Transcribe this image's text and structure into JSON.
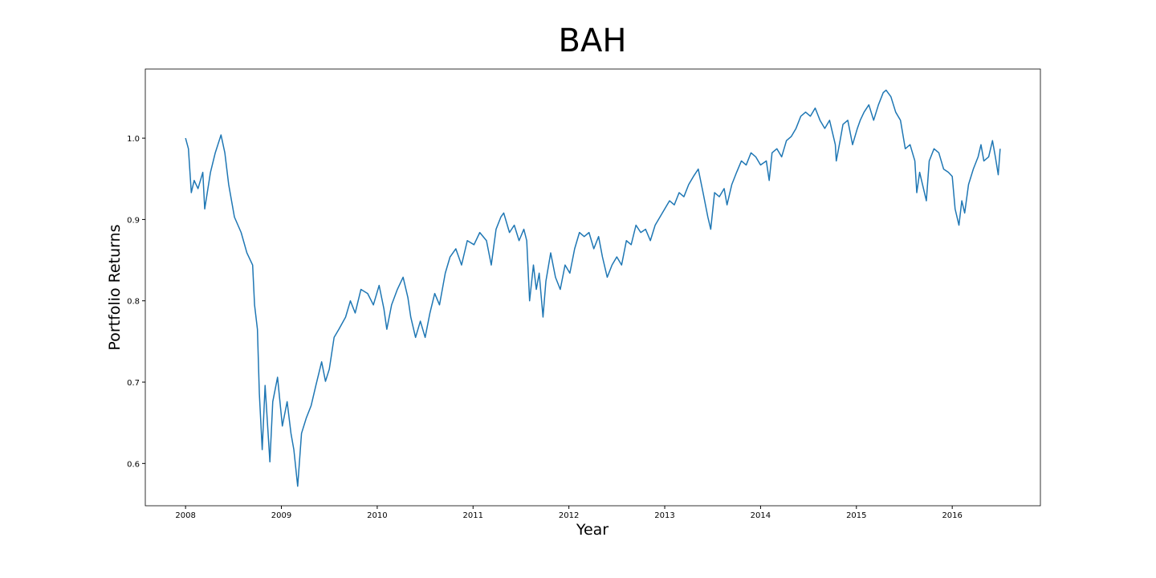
{
  "chart_data": {
    "type": "line",
    "title": "BAH",
    "x_label": "Year",
    "y_label": "Portfolio Returns",
    "color": "#1f77b4",
    "grid": false,
    "xlim": [
      2007.58,
      2016.92
    ],
    "ylim": [
      0.548,
      1.085
    ],
    "xticks": [
      2008,
      2009,
      2010,
      2011,
      2012,
      2013,
      2014,
      2015,
      2016
    ],
    "yticks": [
      0.6,
      0.7,
      0.8,
      0.9,
      {
        "value": 1,
        "label": "1.0"
      }
    ],
    "x": [
      2008.0,
      2008.03,
      2008.06,
      2008.09,
      2008.13,
      2008.18,
      2008.2,
      2008.26,
      2008.31,
      2008.37,
      2008.41,
      2008.45,
      2008.51,
      2008.58,
      2008.64,
      2008.7,
      2008.72,
      2008.75,
      2008.77,
      2008.8,
      2008.83,
      2008.88,
      2008.91,
      2008.96,
      2009.01,
      2009.06,
      2009.1,
      2009.13,
      2009.17,
      2009.21,
      2009.26,
      2009.31,
      2009.36,
      2009.42,
      2009.46,
      2009.5,
      2009.55,
      2009.6,
      2009.67,
      2009.72,
      2009.77,
      2009.83,
      2009.9,
      2009.96,
      2010.02,
      2010.07,
      2010.1,
      2010.15,
      2010.21,
      2010.27,
      2010.32,
      2010.35,
      2010.4,
      2010.45,
      2010.5,
      2010.55,
      2010.6,
      2010.65,
      2010.71,
      2010.76,
      2010.82,
      2010.88,
      2010.94,
      2011.01,
      2011.07,
      2011.14,
      2011.19,
      2011.24,
      2011.29,
      2011.32,
      2011.38,
      2011.43,
      2011.48,
      2011.53,
      2011.56,
      2011.59,
      2011.63,
      2011.66,
      2011.69,
      2011.73,
      2011.76,
      2011.81,
      2011.86,
      2011.91,
      2011.96,
      2012.01,
      2012.06,
      2012.11,
      2012.16,
      2012.21,
      2012.26,
      2012.31,
      2012.35,
      2012.4,
      2012.45,
      2012.5,
      2012.55,
      2012.6,
      2012.65,
      2012.7,
      2012.75,
      2012.8,
      2012.85,
      2012.9,
      2012.95,
      2013.0,
      2013.05,
      2013.1,
      2013.15,
      2013.2,
      2013.25,
      2013.3,
      2013.35,
      2013.4,
      2013.45,
      2013.48,
      2013.52,
      2013.57,
      2013.62,
      2013.65,
      2013.7,
      2013.75,
      2013.8,
      2013.85,
      2013.9,
      2013.95,
      2014.0,
      2014.06,
      2014.09,
      2014.12,
      2014.17,
      2014.22,
      2014.27,
      2014.32,
      2014.37,
      2014.42,
      2014.47,
      2014.52,
      2014.57,
      2014.62,
      2014.67,
      2014.72,
      2014.78,
      2014.79,
      2014.83,
      2014.86,
      2014.91,
      2014.96,
      2015.01,
      2015.04,
      2015.08,
      2015.13,
      2015.18,
      2015.23,
      2015.28,
      2015.31,
      2015.36,
      2015.41,
      2015.46,
      2015.51,
      2015.56,
      2015.61,
      2015.63,
      2015.66,
      2015.7,
      2015.73,
      2015.76,
      2015.81,
      2015.86,
      2015.91,
      2015.96,
      2016.0,
      2016.03,
      2016.07,
      2016.1,
      2016.13,
      2016.17,
      2016.22,
      2016.27,
      2016.3,
      2016.33,
      2016.38,
      2016.42,
      2016.45,
      2016.48,
      2016.5
    ],
    "values": [
      1.0,
      0.987,
      0.933,
      0.948,
      0.938,
      0.958,
      0.913,
      0.958,
      0.982,
      1.004,
      0.982,
      0.943,
      0.903,
      0.884,
      0.859,
      0.844,
      0.795,
      0.765,
      0.686,
      0.617,
      0.696,
      0.602,
      0.676,
      0.706,
      0.646,
      0.676,
      0.637,
      0.617,
      0.572,
      0.637,
      0.656,
      0.671,
      0.696,
      0.725,
      0.701,
      0.716,
      0.755,
      0.765,
      0.78,
      0.8,
      0.785,
      0.814,
      0.809,
      0.795,
      0.819,
      0.79,
      0.765,
      0.795,
      0.814,
      0.829,
      0.804,
      0.78,
      0.755,
      0.775,
      0.755,
      0.785,
      0.809,
      0.795,
      0.834,
      0.854,
      0.864,
      0.844,
      0.874,
      0.869,
      0.884,
      0.874,
      0.844,
      0.888,
      0.903,
      0.908,
      0.884,
      0.893,
      0.874,
      0.888,
      0.874,
      0.8,
      0.844,
      0.814,
      0.834,
      0.78,
      0.824,
      0.859,
      0.829,
      0.814,
      0.844,
      0.834,
      0.864,
      0.884,
      0.879,
      0.884,
      0.864,
      0.879,
      0.854,
      0.829,
      0.844,
      0.854,
      0.844,
      0.874,
      0.869,
      0.893,
      0.884,
      0.888,
      0.874,
      0.893,
      0.903,
      0.913,
      0.923,
      0.918,
      0.933,
      0.928,
      0.943,
      0.953,
      0.962,
      0.933,
      0.903,
      0.888,
      0.933,
      0.928,
      0.938,
      0.918,
      0.943,
      0.958,
      0.972,
      0.967,
      0.982,
      0.977,
      0.967,
      0.972,
      0.948,
      0.982,
      0.987,
      0.977,
      0.997,
      1.002,
      1.012,
      1.027,
      1.032,
      1.027,
      1.037,
      1.022,
      1.012,
      1.022,
      0.992,
      0.972,
      0.997,
      1.017,
      1.022,
      0.992,
      1.012,
      1.022,
      1.032,
      1.041,
      1.022,
      1.041,
      1.056,
      1.059,
      1.051,
      1.032,
      1.022,
      0.987,
      0.992,
      0.972,
      0.933,
      0.958,
      0.938,
      0.923,
      0.972,
      0.987,
      0.982,
      0.962,
      0.958,
      0.953,
      0.913,
      0.893,
      0.923,
      0.908,
      0.943,
      0.962,
      0.977,
      0.992,
      0.972,
      0.977,
      0.997,
      0.977,
      0.955,
      0.987
    ]
  }
}
